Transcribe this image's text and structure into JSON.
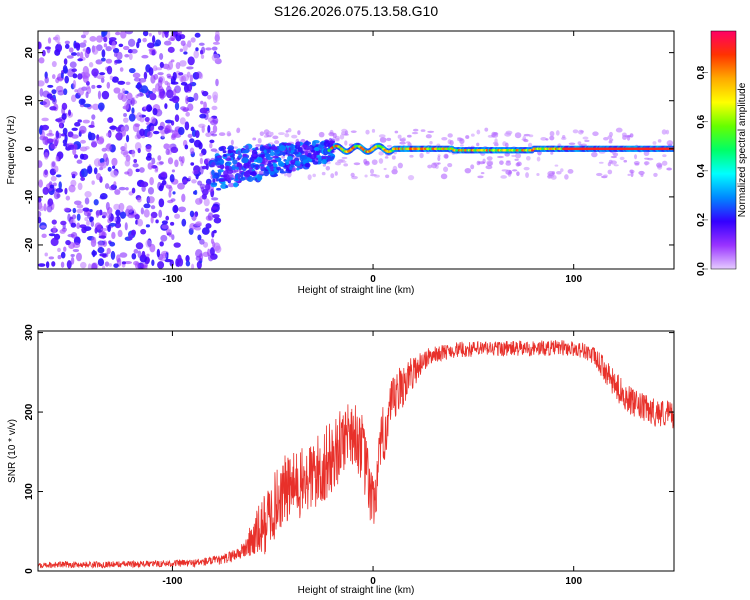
{
  "title": "S126.2026.075.13.58.G10",
  "chart_data": [
    {
      "type": "heatmap",
      "name": "spectrogram",
      "xlabel": "Height of straight line (km)",
      "ylabel": "Frequency (Hz)",
      "xlim": [
        -167,
        150
      ],
      "ylim": [
        -25,
        24.5
      ],
      "xticks": [
        -100,
        0,
        100
      ],
      "xtick_labels": [
        "-100",
        "0",
        "100"
      ],
      "yticks": [
        -20,
        -10,
        0,
        10,
        20
      ],
      "ytick_labels": [
        "-20",
        "-10",
        "0",
        "10",
        "20"
      ],
      "colorbar": {
        "label": "Normalized spectral amplitude",
        "range": [
          0,
          0.97
        ],
        "ticks": [
          0,
          0.2,
          0.4,
          0.6,
          0.8
        ],
        "tick_labels": [
          "0.0",
          "0.2",
          "0.4",
          "0.6",
          "0.8"
        ],
        "colors": [
          "#e6ccff",
          "#9933ff",
          "#3300ff",
          "#0088ff",
          "#00ffff",
          "#00ff66",
          "#66ff00",
          "#ffff00",
          "#ffaa00",
          "#ff3300",
          "#ff0066"
        ]
      },
      "regions": [
        {
          "description": "noise",
          "x_range": [
            -167,
            -80
          ],
          "freq_range": [
            -25,
            24.5
          ],
          "amplitude": 0.05
        },
        {
          "description": "transition",
          "x_range": [
            -80,
            -20
          ],
          "freq_range": [
            -8,
            3
          ],
          "amplitude": 0.25
        },
        {
          "description": "carrier",
          "x_range": [
            -20,
            150
          ],
          "freq_range": [
            -0.8,
            0.8
          ],
          "amplitude": 0.9
        }
      ]
    },
    {
      "type": "line",
      "name": "snr",
      "xlabel": "Height of straight line (km)",
      "ylabel": "SNR (10 * v/v)",
      "xlim": [
        -167,
        150
      ],
      "ylim": [
        0,
        302
      ],
      "xticks": [
        -100,
        0,
        100
      ],
      "xtick_labels": [
        "-100",
        "0",
        "100"
      ],
      "yticks": [
        0,
        100,
        200,
        300
      ],
      "ytick_labels": [
        "0",
        "100",
        "200",
        "300"
      ],
      "color": "#e8302a",
      "x": [
        -167,
        -140,
        -110,
        -90,
        -75,
        -65,
        -55,
        -45,
        -35,
        -25,
        -18,
        -12,
        -6,
        0,
        5,
        10,
        15,
        20,
        25,
        30,
        40,
        60,
        80,
        95,
        105,
        110,
        115,
        120,
        130,
        140,
        150
      ],
      "y": [
        8,
        8,
        9,
        10,
        14,
        25,
        55,
        100,
        110,
        130,
        150,
        180,
        160,
        80,
        170,
        210,
        235,
        250,
        265,
        272,
        278,
        280,
        280,
        281,
        278,
        270,
        255,
        235,
        210,
        200,
        197
      ],
      "noise_amplitude": [
        4,
        4,
        4,
        5,
        6,
        10,
        40,
        45,
        45,
        50,
        45,
        40,
        45,
        40,
        40,
        35,
        30,
        20,
        15,
        10,
        10,
        10,
        10,
        10,
        10,
        12,
        15,
        18,
        18,
        18,
        18
      ]
    }
  ]
}
